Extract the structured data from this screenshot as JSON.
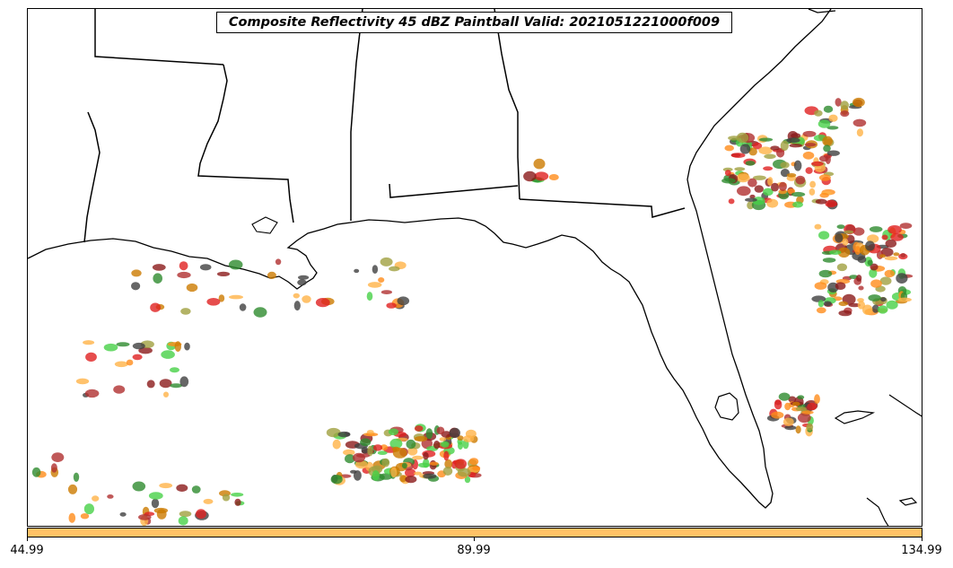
{
  "title": "Composite Reflectivity 45 dBZ Paintball Valid: 2021051221000f009",
  "colorbar": {
    "color": "#ffc266",
    "ticks": [
      "44.99",
      "89.99",
      "134.99"
    ]
  },
  "map": {
    "region": "US Gulf Coast and Florida",
    "features": [
      "coastline",
      "state-borders"
    ],
    "paintball_colors": [
      "#e02020",
      "#ff8c1a",
      "#ffb347",
      "#47d147",
      "#2e8b2e",
      "#a0a040",
      "#b03030",
      "#404040",
      "#8b1a1a",
      "#cc7a00"
    ]
  }
}
